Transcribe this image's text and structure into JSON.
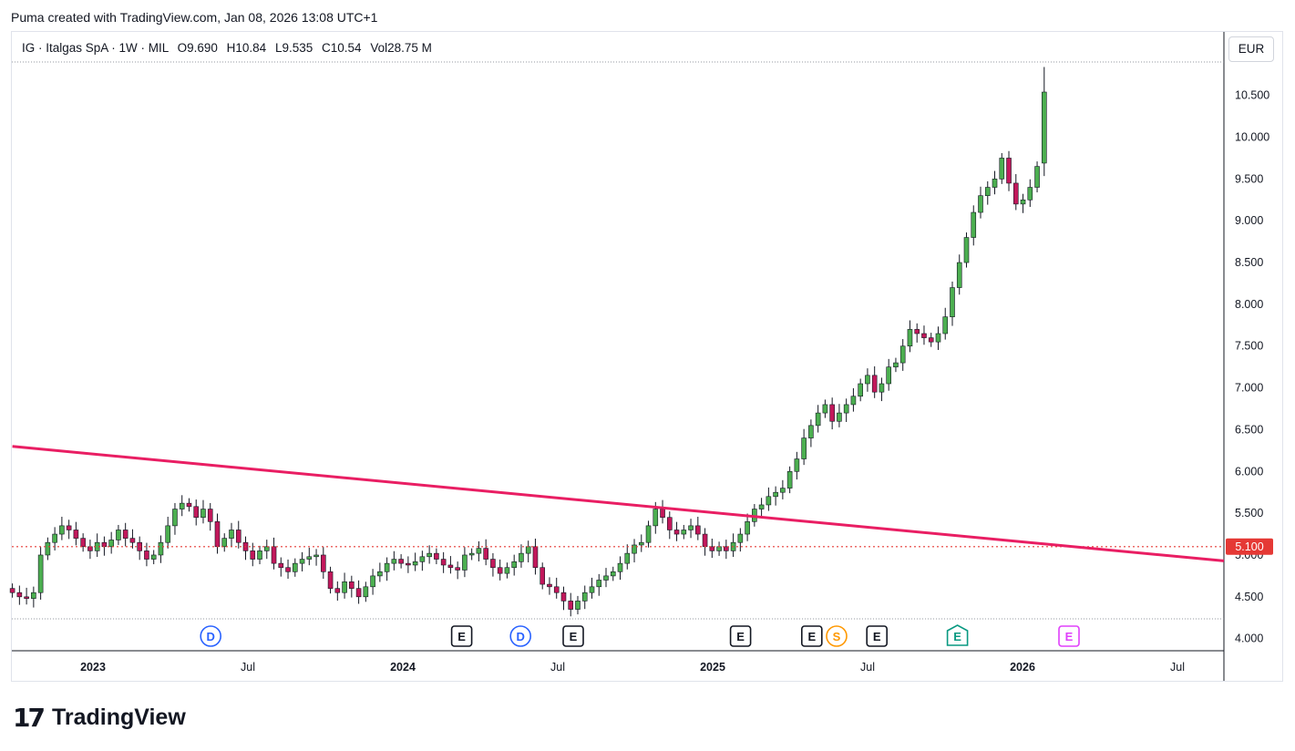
{
  "caption": "Puma created with TradingView.com, Jan 08, 2026 13:08 UTC+1",
  "legend": {
    "symbol": "IG · Italgas SpA · 1W · MIL",
    "open_label": "O",
    "open": "9.690",
    "high_label": "H",
    "high": "10.84",
    "low_label": "L",
    "low": "9.535",
    "close_label": "C",
    "close": "10.54",
    "vol_label": "Vol",
    "vol": "28.75 M"
  },
  "currency": "EUR",
  "brand": "TradingView",
  "colors": {
    "up": "#22ab94",
    "down": "#f23645",
    "trendline": "#e91e63",
    "hline": "#e53935",
    "candle_up": "#4caf50",
    "candle_down": "#c2185b"
  },
  "chart_data": {
    "type": "candlestick",
    "interval": "1W",
    "y_ticks": [
      "4.000",
      "4.500",
      "5.000",
      "5.500",
      "6.000",
      "6.500",
      "7.000",
      "7.500",
      "8.000",
      "8.500",
      "9.000",
      "9.500",
      "10.000",
      "10.500"
    ],
    "ylim": [
      3.8,
      10.9
    ],
    "x_ticks": [
      {
        "label": "2023",
        "bold": true,
        "t": 0.0
      },
      {
        "label": "Jul",
        "bold": false,
        "t": 0.5
      },
      {
        "label": "2024",
        "bold": true,
        "t": 1.0
      },
      {
        "label": "Jul",
        "bold": false,
        "t": 1.5
      },
      {
        "label": "2025",
        "bold": true,
        "t": 2.0
      },
      {
        "label": "Jul",
        "bold": false,
        "t": 2.5
      },
      {
        "label": "2026",
        "bold": true,
        "t": 3.0
      },
      {
        "label": "Jul",
        "bold": false,
        "t": 3.5
      }
    ],
    "horizontal_line": {
      "value": 5.1,
      "label": "5.100"
    },
    "trendline": {
      "from": {
        "t": -0.26,
        "v": 6.3
      },
      "to": {
        "t": 3.65,
        "v": 4.93
      }
    },
    "events": [
      {
        "letter": "D",
        "t": 0.38,
        "kind": "dividend"
      },
      {
        "letter": "E",
        "t": 1.19,
        "kind": "earnings"
      },
      {
        "letter": "D",
        "t": 1.38,
        "kind": "dividend"
      },
      {
        "letter": "E",
        "t": 1.55,
        "kind": "earnings"
      },
      {
        "letter": "E",
        "t": 2.09,
        "kind": "earnings"
      },
      {
        "letter": "E",
        "t": 2.32,
        "kind": "earnings"
      },
      {
        "letter": "S",
        "t": 2.4,
        "kind": "split"
      },
      {
        "letter": "E",
        "t": 2.53,
        "kind": "earnings"
      },
      {
        "letter": "E",
        "t": 2.79,
        "kind": "earnings-upcoming"
      },
      {
        "letter": "E",
        "t": 3.15,
        "kind": "earnings-future"
      }
    ],
    "weekly_closes": [
      4.55,
      4.5,
      4.48,
      4.55,
      5.0,
      5.15,
      5.25,
      5.35,
      5.3,
      5.2,
      5.1,
      5.05,
      5.15,
      5.1,
      5.18,
      5.3,
      5.2,
      5.15,
      5.05,
      4.95,
      5.0,
      5.15,
      5.35,
      5.55,
      5.62,
      5.58,
      5.45,
      5.55,
      5.4,
      5.1,
      5.2,
      5.3,
      5.15,
      5.05,
      4.95,
      5.05,
      5.1,
      4.9,
      4.85,
      4.8,
      4.9,
      4.95,
      4.98,
      5.0,
      4.8,
      4.6,
      4.55,
      4.68,
      4.6,
      4.5,
      4.62,
      4.75,
      4.8,
      4.9,
      4.95,
      4.9,
      4.88,
      4.92,
      4.98,
      5.02,
      4.95,
      4.88,
      4.85,
      4.82,
      5.0,
      5.02,
      5.08,
      4.95,
      4.85,
      4.78,
      4.85,
      4.92,
      5.02,
      5.1,
      4.85,
      4.65,
      4.62,
      4.55,
      4.45,
      4.35,
      4.45,
      4.55,
      4.62,
      4.7,
      4.75,
      4.8,
      4.9,
      5.02,
      5.12,
      5.15,
      5.35,
      5.55,
      5.45,
      5.3,
      5.25,
      5.3,
      5.35,
      5.25,
      5.1,
      5.05,
      5.1,
      5.05,
      5.15,
      5.25,
      5.4,
      5.55,
      5.6,
      5.7,
      5.75,
      5.8,
      6.0,
      6.15,
      6.4,
      6.55,
      6.7,
      6.8,
      6.6,
      6.7,
      6.8,
      6.9,
      7.05,
      7.15,
      6.95,
      7.05,
      7.25,
      7.3,
      7.5,
      7.7,
      7.65,
      7.6,
      7.55,
      7.65,
      7.85,
      8.2,
      8.5,
      8.8,
      9.1,
      9.3,
      9.4,
      9.5,
      9.75,
      9.45,
      9.2,
      9.25,
      9.4,
      9.65,
      10.54
    ],
    "weekly_opens": [
      4.6,
      4.55,
      4.5,
      4.48,
      4.55,
      5.0,
      5.15,
      5.25,
      5.35,
      5.3,
      5.2,
      5.1,
      5.05,
      5.15,
      5.1,
      5.18,
      5.3,
      5.2,
      5.15,
      5.05,
      4.95,
      5.0,
      5.15,
      5.35,
      5.55,
      5.62,
      5.58,
      5.45,
      5.55,
      5.4,
      5.1,
      5.2,
      5.3,
      5.15,
      5.05,
      4.95,
      5.05,
      5.1,
      4.9,
      4.85,
      4.8,
      4.9,
      4.95,
      4.98,
      5.0,
      4.8,
      4.6,
      4.55,
      4.68,
      4.6,
      4.5,
      4.62,
      4.75,
      4.8,
      4.9,
      4.95,
      4.9,
      4.88,
      4.92,
      4.98,
      5.02,
      4.95,
      4.88,
      4.85,
      4.82,
      5.0,
      5.02,
      5.08,
      4.95,
      4.85,
      4.78,
      4.85,
      4.92,
      5.02,
      5.1,
      4.85,
      4.65,
      4.62,
      4.55,
      4.45,
      4.35,
      4.45,
      4.55,
      4.62,
      4.7,
      4.75,
      4.8,
      4.9,
      5.02,
      5.12,
      5.15,
      5.35,
      5.55,
      5.45,
      5.3,
      5.25,
      5.3,
      5.35,
      5.25,
      5.1,
      5.05,
      5.1,
      5.05,
      5.15,
      5.25,
      5.4,
      5.55,
      5.6,
      5.7,
      5.75,
      5.8,
      6.0,
      6.15,
      6.4,
      6.55,
      6.7,
      6.8,
      6.6,
      6.7,
      6.8,
      6.9,
      7.05,
      7.15,
      6.95,
      7.05,
      7.25,
      7.3,
      7.5,
      7.7,
      7.65,
      7.6,
      7.55,
      7.65,
      7.85,
      8.2,
      8.5,
      8.8,
      9.1,
      9.3,
      9.4,
      9.5,
      9.75,
      9.45,
      9.2,
      9.25,
      9.4,
      9.69
    ],
    "weekly_highs_final": 10.84,
    "weekly_lows_final": 9.535
  }
}
